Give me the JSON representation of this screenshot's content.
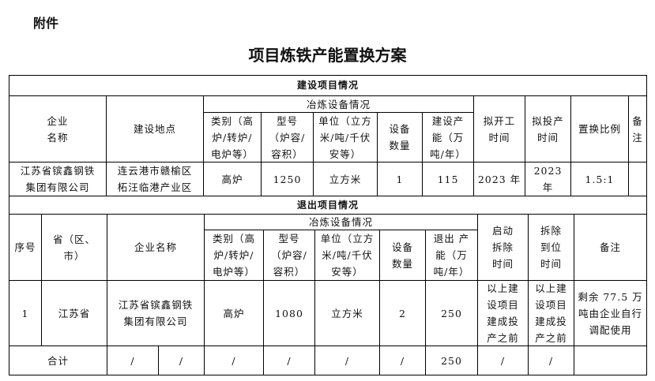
{
  "attachment_label": "附件",
  "title": "项目炼铁产能置换方案",
  "build": {
    "section": "建设项目情况",
    "equip_group": "冶炼设备情况",
    "headers": {
      "company": "企业\n名称",
      "location": "建设地点",
      "type": "类别（高\n炉/转炉/\n电炉等）",
      "model": "型号\n（炉容/\n容积）",
      "unit": "单位（立方\n米/吨/千伏\n安等）",
      "count": "设备\n数量",
      "capacity": "建设产\n能（万\n吨/年）",
      "start": "拟开工\n时间",
      "production": "拟投产\n时间",
      "ratio": "置换比例",
      "remark": "备\n注"
    },
    "row": {
      "company": "江苏省镔鑫钢铁\n集团有限公司",
      "location": "连云港市赣榆区\n柘汪临港产业区",
      "type": "高炉",
      "model": "1250",
      "unit": "立方米",
      "count": "1",
      "capacity": "115",
      "start": "2023 年",
      "production": "2023\n年",
      "ratio": "1.5:1",
      "remark": ""
    }
  },
  "exit": {
    "section": "退出项目情况",
    "equip_group": "冶炼设备情况",
    "headers": {
      "no": "序号",
      "province": "省（区、\n市）",
      "company": "企业名称",
      "type": "类别（高\n炉/转炉/\n电炉等）",
      "model": "型号\n（炉容/\n容积）",
      "unit": "单位（立方\n米/吨/千伏\n安等）",
      "count": "设备\n数量",
      "capacity": "退出 产\n能（万\n吨/年）",
      "start": "启动\n拆除\n时间",
      "end": "拆除\n到位\n时间",
      "remark": "备注"
    },
    "row": {
      "no": "1",
      "province": "江苏省",
      "company": "江苏省镔鑫钢铁\n集团有限公司",
      "type": "高炉",
      "model": "1080",
      "unit": "立方米",
      "count": "2",
      "capacity": "250",
      "start": "以上建\n设项目\n建成投\n产之前",
      "end": "以上建\n设项目\n建成投\n产之前",
      "remark": "剩余 77.5 万\n吨由企业自行\n调配使用"
    },
    "total": {
      "label": "合计",
      "c1": "/",
      "c2": "/",
      "c3": "/",
      "c4": "/",
      "c5": "/",
      "c6": "/",
      "capacity": "250",
      "c8": "/",
      "c9": "/",
      "remark": ""
    }
  }
}
